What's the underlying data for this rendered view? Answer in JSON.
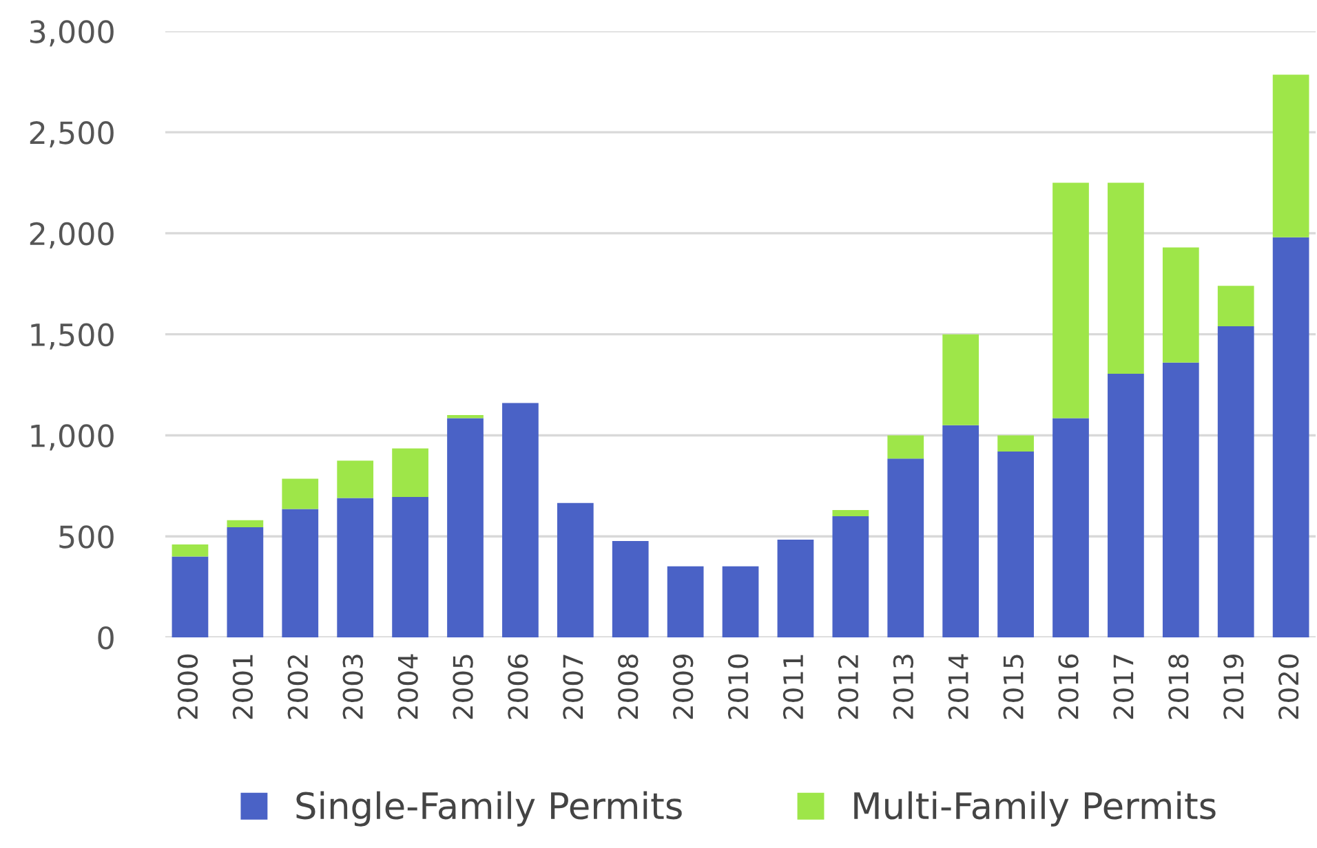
{
  "chart_data": {
    "type": "bar",
    "stacked": true,
    "categories": [
      "2000",
      "2001",
      "2002",
      "2003",
      "2004",
      "2005",
      "2006",
      "2007",
      "2008",
      "2009",
      "2010",
      "2011",
      "2012",
      "2013",
      "2014",
      "2015",
      "2016",
      "2017",
      "2018",
      "2019",
      "2020"
    ],
    "series": [
      {
        "name": "Single-Family Permits",
        "color": "#4a62c6",
        "values": [
          400,
          545,
          635,
          690,
          695,
          1085,
          1160,
          665,
          477,
          352,
          352,
          484,
          600,
          885,
          1050,
          920,
          1085,
          1305,
          1360,
          1540,
          1980
        ]
      },
      {
        "name": "Multi-Family Permits",
        "color": "#9ee649",
        "values": [
          60,
          35,
          150,
          185,
          240,
          15,
          null,
          null,
          null,
          null,
          null,
          null,
          30,
          115,
          450,
          80,
          1165,
          945,
          570,
          200,
          805
        ]
      }
    ],
    "ylim": [
      0,
      3000
    ],
    "yticks": [
      {
        "value": 0,
        "label": "0"
      },
      {
        "value": 500,
        "label": "500"
      },
      {
        "value": 1000,
        "label": "1,000"
      },
      {
        "value": 1500,
        "label": "1,500"
      },
      {
        "value": 2000,
        "label": "2,000"
      },
      {
        "value": 2500,
        "label": "2,500"
      },
      {
        "value": 3000,
        "label": "3,000"
      }
    ],
    "grid": "y",
    "legend": "bottom"
  }
}
